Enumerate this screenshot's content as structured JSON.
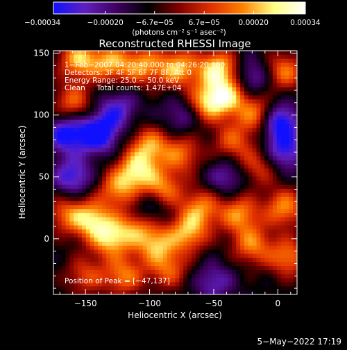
{
  "chart_data": {
    "type": "heatmap",
    "title": "Reconstructed RHESSI Image",
    "xlabel": "Heliocentric X (arcsec)",
    "ylabel": "Heliocentric Y (arcsec)",
    "xlim": [
      -175,
      15
    ],
    "ylim": [
      -45,
      152
    ],
    "x_ticks": [
      -150,
      -100,
      -50,
      0
    ],
    "x_tick_labels": [
      "−150",
      "−100",
      "−50",
      "0"
    ],
    "y_ticks": [
      0,
      50,
      100,
      150
    ],
    "y_tick_labels": [
      "0",
      "50",
      "100",
      "150"
    ],
    "colorbar": {
      "range": [
        -0.00034,
        0.00034
      ],
      "ticks": [
        -0.00034,
        -0.0002,
        -6.7e-05,
        6.7e-05,
        0.0002,
        0.00034
      ],
      "tick_labels": [
        "−0.00034",
        "−0.00020",
        "−6.7e−05",
        "6.7e−05",
        "0.00020",
        "0.00034"
      ],
      "label": "(photons cm⁻² s⁻¹ asec⁻²)",
      "colors": [
        "#1010ff",
        "#6020c0",
        "#400060",
        "#000000",
        "#800000",
        "#e03000",
        "#ff8000",
        "#ffff80",
        "#ffffff"
      ]
    },
    "annotations": [
      "1−Feb−2007 04:20:40.000 to 04:26:20.000",
      "Detectors: 3F 4F 5F 6F 7F 8F, Att 0",
      "Energy Range: 25.0 − 50.0 keV",
      "Clean     Total counts: 1.47E+04"
    ],
    "peak_label": "Position of Peak = [−47,137]",
    "peak_position": [
      -47,
      137
    ],
    "grid": false,
    "blobs": [
      {
        "x": -155,
        "y": 145,
        "v": 0.0003
      },
      {
        "x": -130,
        "y": 142,
        "v": 0.00027
      },
      {
        "x": -105,
        "y": 140,
        "v": 0.00026
      },
      {
        "x": -78,
        "y": 138,
        "v": 0.0003
      },
      {
        "x": -47,
        "y": 137,
        "v": 0.00034
      },
      {
        "x": -55,
        "y": 110,
        "v": 0.0003
      },
      {
        "x": -38,
        "y": 115,
        "v": 0.00028
      },
      {
        "x": -15,
        "y": 100,
        "v": 0.00028
      },
      {
        "x": 5,
        "y": 135,
        "v": 0.00024
      },
      {
        "x": -160,
        "y": 110,
        "v": 0.00022
      },
      {
        "x": -100,
        "y": 75,
        "v": 0.00026
      },
      {
        "x": -110,
        "y": 55,
        "v": 0.0003
      },
      {
        "x": -75,
        "y": 68,
        "v": 0.00022
      },
      {
        "x": -35,
        "y": 78,
        "v": 0.0002
      },
      {
        "x": -15,
        "y": 58,
        "v": 0.00018
      },
      {
        "x": -125,
        "y": 40,
        "v": 0.00024
      },
      {
        "x": -90,
        "y": 40,
        "v": 0.00026
      },
      {
        "x": -145,
        "y": 15,
        "v": 0.0003
      },
      {
        "x": -130,
        "y": 0,
        "v": 0.0003
      },
      {
        "x": -110,
        "y": 10,
        "v": 0.00022
      },
      {
        "x": -95,
        "y": -5,
        "v": 0.00026
      },
      {
        "x": -70,
        "y": 5,
        "v": 0.00028
      },
      {
        "x": -60,
        "y": 25,
        "v": 0.00024
      },
      {
        "x": -30,
        "y": 20,
        "v": 0.00026
      },
      {
        "x": -20,
        "y": -5,
        "v": 0.00024
      },
      {
        "x": -165,
        "y": 20,
        "v": 0.0002
      },
      {
        "x": 5,
        "y": 25,
        "v": 0.00026
      },
      {
        "x": 8,
        "y": -15,
        "v": 0.00024
      },
      {
        "x": -150,
        "y": -30,
        "v": 0.00018
      },
      {
        "x": -120,
        "y": -30,
        "v": 0.00024
      },
      {
        "x": -85,
        "y": -25,
        "v": 0.0002
      },
      {
        "x": -165,
        "y": 85,
        "v": -0.00026
      },
      {
        "x": -140,
        "y": 85,
        "v": -0.0003
      },
      {
        "x": -125,
        "y": 105,
        "v": -0.00018
      },
      {
        "x": -20,
        "y": 130,
        "v": -0.00018
      },
      {
        "x": 5,
        "y": 70,
        "v": -0.00022
      },
      {
        "x": 0,
        "y": 95,
        "v": -0.00032
      },
      {
        "x": -40,
        "y": 50,
        "v": -0.00016
      },
      {
        "x": -100,
        "y": 25,
        "v": -0.00016
      },
      {
        "x": -160,
        "y": 50,
        "v": -0.00022
      },
      {
        "x": -50,
        "y": -35,
        "v": -0.00016
      },
      {
        "x": -75,
        "y": 100,
        "v": -0.00014
      }
    ]
  },
  "footer_date": "5−May−2022 17:19"
}
